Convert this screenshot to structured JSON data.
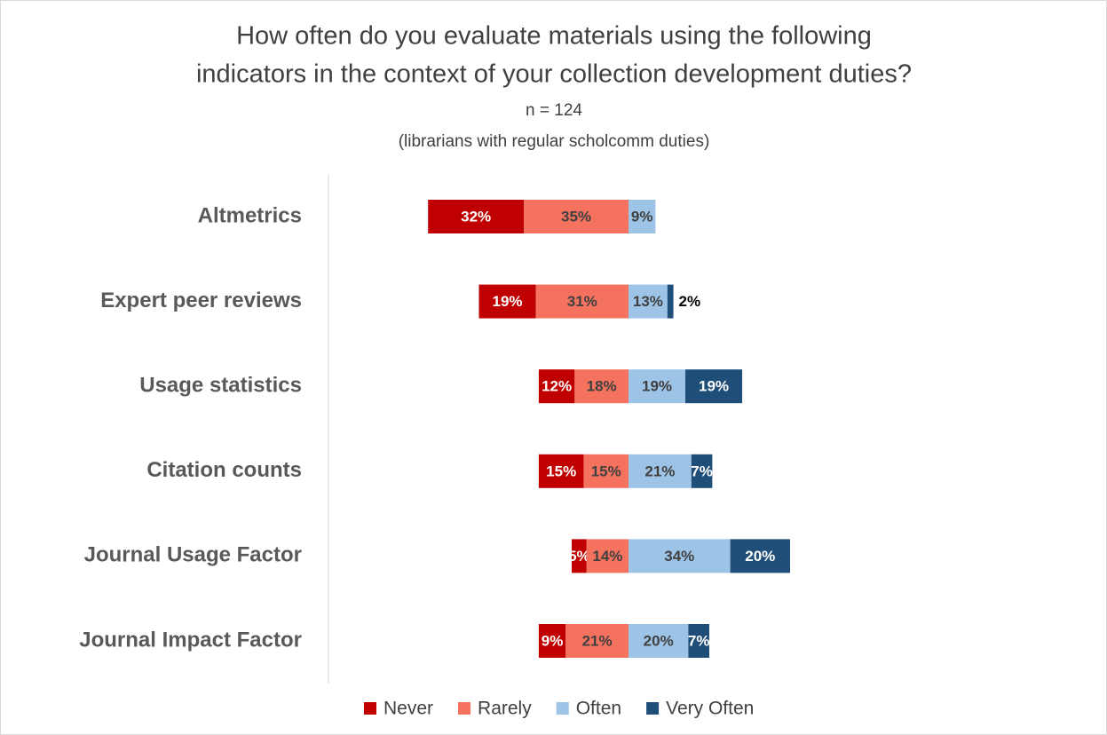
{
  "chart_data": {
    "type": "diverging-bar",
    "title": [
      "How often do you evaluate materials using the following",
      "indicators in the context of your collection development duties?"
    ],
    "subtitle": [
      "n = 124",
      "(librarians with regular scholcomm duties)"
    ],
    "categories": [
      "Altmetrics",
      "Expert peer reviews",
      "Usage statistics",
      "Citation counts",
      "Journal Usage Factor",
      "Journal Impact Factor"
    ],
    "series": [
      {
        "name": "Never",
        "color": "#c00000",
        "side": "left",
        "values": [
          32,
          19,
          12,
          15,
          5,
          9
        ],
        "value_labels": [
          "32%",
          "19%",
          "12%",
          "15%",
          "5%",
          "9%"
        ]
      },
      {
        "name": "Rarely",
        "color": "#f4725e",
        "side": "left",
        "values": [
          35,
          31,
          18,
          15,
          14,
          21
        ],
        "value_labels": [
          "35%",
          "31%",
          "18%",
          "15%",
          "14%",
          "21%"
        ]
      },
      {
        "name": "Often",
        "color": "#9dc3e6",
        "side": "right",
        "values": [
          9,
          13,
          19,
          21,
          34,
          20
        ],
        "value_labels": [
          "9%",
          "13%",
          "19%",
          "21%",
          "34%",
          "20%"
        ]
      },
      {
        "name": "Very Often",
        "color": "#1f4e79",
        "side": "right",
        "values": [
          null,
          2,
          19,
          7,
          20,
          7
        ],
        "value_labels": [
          null,
          "2%",
          "19%",
          "7%",
          "20%",
          "7%"
        ]
      }
    ],
    "legend": "bottom"
  }
}
